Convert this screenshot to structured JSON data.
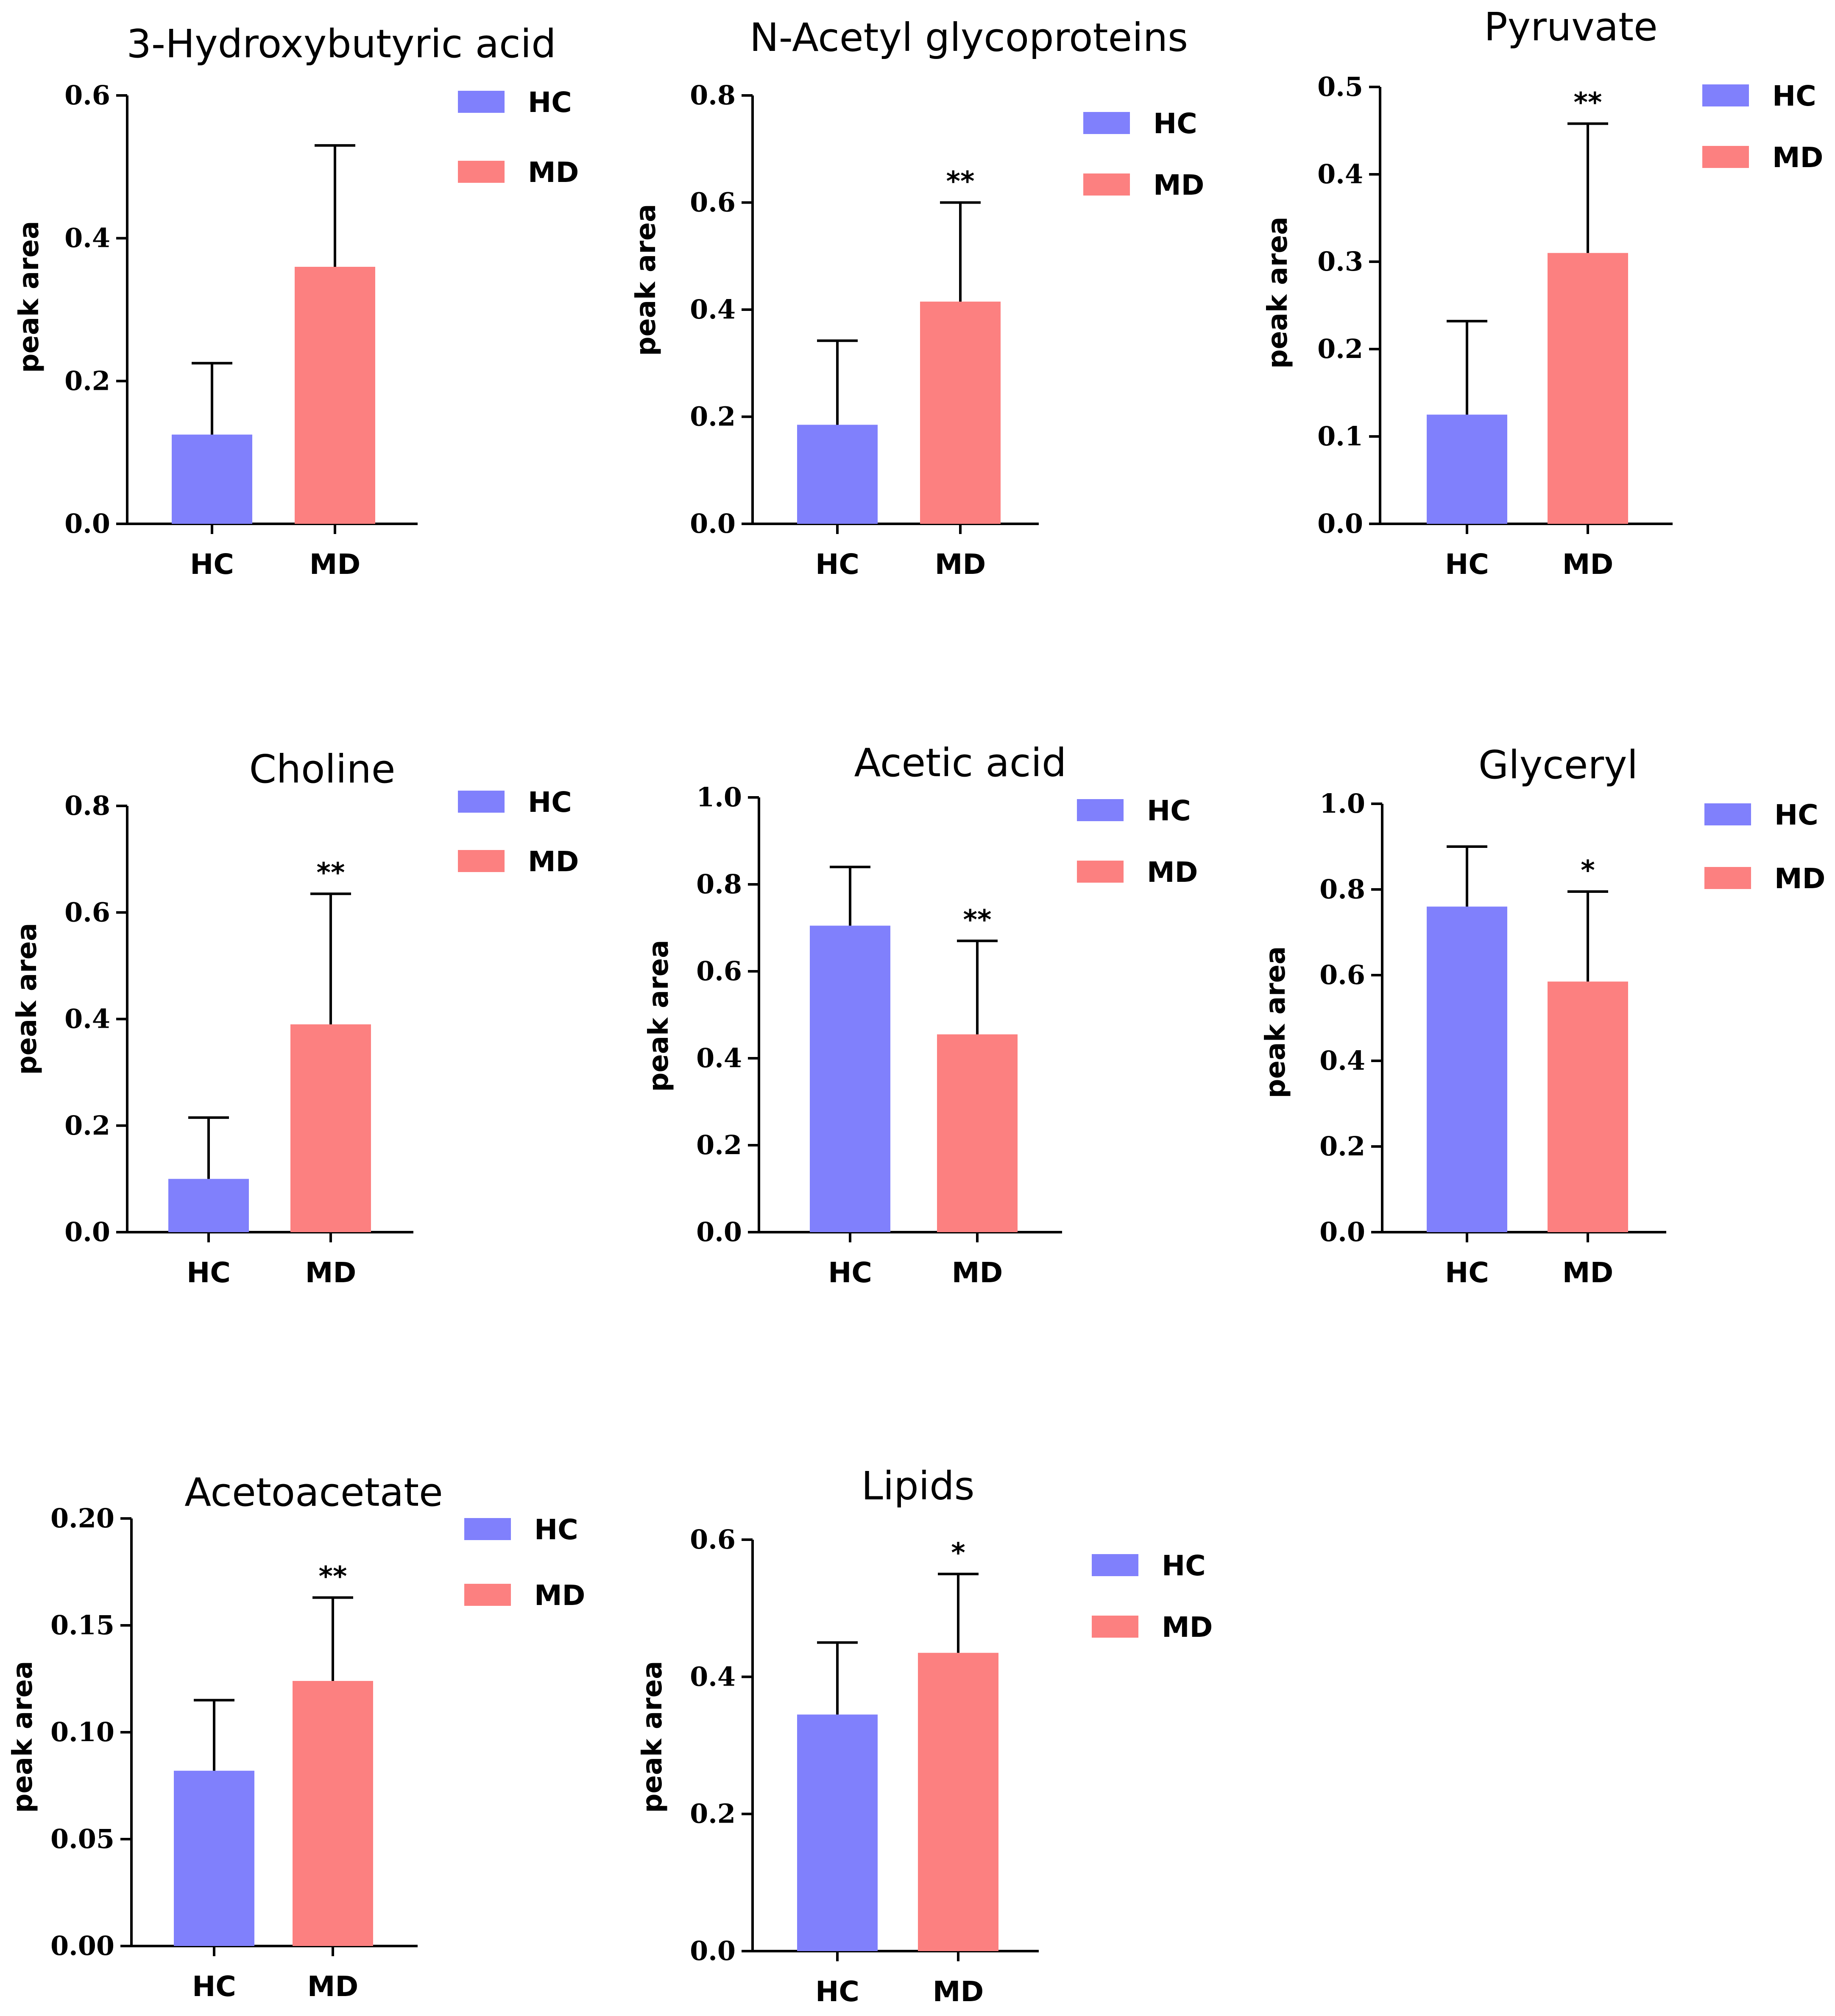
{
  "colors": {
    "HC": "#8080fc",
    "MD": "#fc8080"
  },
  "chart_data": [
    {
      "type": "bar",
      "title": "3-Hydroxybutyric acid",
      "ylabel": "peak area",
      "xlabel": "",
      "categories": [
        "HC",
        "MD"
      ],
      "values": [
        0.125,
        0.36
      ],
      "errors": [
        0.1,
        0.17
      ],
      "significance": "",
      "ylim": [
        0,
        0.6
      ],
      "yticks": [
        "0.0",
        "0.2",
        "0.4",
        "0.6"
      ],
      "tick_values": [
        0,
        0.2,
        0.4,
        0.6
      ],
      "legend": [
        "HC",
        "MD"
      ],
      "legend_position": "top-right"
    },
    {
      "type": "bar",
      "title": "N-Acetyl glycoproteins",
      "ylabel": "peak area",
      "xlabel": "",
      "categories": [
        "HC",
        "MD"
      ],
      "values": [
        0.185,
        0.415
      ],
      "errors": [
        0.157,
        0.185
      ],
      "significance": "**",
      "ylim": [
        0,
        0.8
      ],
      "yticks": [
        "0.0",
        "0.2",
        "0.4",
        "0.6",
        "0.8"
      ],
      "tick_values": [
        0,
        0.2,
        0.4,
        0.6,
        0.8
      ],
      "legend": [
        "HC",
        "MD"
      ],
      "legend_position": "top-right"
    },
    {
      "type": "bar",
      "title": "Pyruvate",
      "ylabel": "peak area",
      "xlabel": "",
      "categories": [
        "HC",
        "MD"
      ],
      "values": [
        0.125,
        0.31
      ],
      "errors": [
        0.107,
        0.148
      ],
      "significance": "**",
      "ylim": [
        0,
        0.5
      ],
      "yticks": [
        "0.0",
        "0.1",
        "0.2",
        "0.3",
        "0.4",
        "0.5"
      ],
      "tick_values": [
        0,
        0.1,
        0.2,
        0.3,
        0.4,
        0.5
      ],
      "legend": [
        "HC",
        "MD"
      ],
      "legend_position": "top-right"
    },
    {
      "type": "bar",
      "title": "Choline",
      "ylabel": "peak area",
      "xlabel": "",
      "categories": [
        "HC",
        "MD"
      ],
      "values": [
        0.1,
        0.39
      ],
      "errors": [
        0.115,
        0.245
      ],
      "significance": "**",
      "ylim": [
        0,
        0.8
      ],
      "yticks": [
        "0.0",
        "0.2",
        "0.4",
        "0.6",
        "0.8"
      ],
      "tick_values": [
        0,
        0.2,
        0.4,
        0.6,
        0.8
      ],
      "legend": [
        "HC",
        "MD"
      ],
      "legend_position": "top-right"
    },
    {
      "type": "bar",
      "title": "Acetic acid",
      "ylabel": "peak area",
      "xlabel": "",
      "categories": [
        "HC",
        "MD"
      ],
      "values": [
        0.705,
        0.455
      ],
      "errors": [
        0.135,
        0.215
      ],
      "significance": "**",
      "ylim": [
        0,
        1.0
      ],
      "yticks": [
        "0.0",
        "0.2",
        "0.4",
        "0.6",
        "0.8",
        "1.0"
      ],
      "tick_values": [
        0,
        0.2,
        0.4,
        0.6,
        0.8,
        1.0
      ],
      "legend": [
        "HC",
        "MD"
      ],
      "legend_position": "top-right"
    },
    {
      "type": "bar",
      "title": "Glyceryl",
      "ylabel": "peak area",
      "xlabel": "",
      "categories": [
        "HC",
        "MD"
      ],
      "values": [
        0.76,
        0.585
      ],
      "errors": [
        0.14,
        0.21
      ],
      "significance": "*",
      "ylim": [
        0,
        1.0
      ],
      "yticks": [
        "0.0",
        "0.2",
        "0.4",
        "0.6",
        "0.8",
        "1.0"
      ],
      "tick_values": [
        0,
        0.2,
        0.4,
        0.6,
        0.8,
        1.0
      ],
      "legend": [
        "HC",
        "MD"
      ],
      "legend_position": "top-right"
    },
    {
      "type": "bar",
      "title": "Acetoacetate",
      "ylabel": "peak area",
      "xlabel": "",
      "categories": [
        "HC",
        "MD"
      ],
      "values": [
        0.082,
        0.124
      ],
      "errors": [
        0.033,
        0.039
      ],
      "significance": "**",
      "ylim": [
        0,
        0.2
      ],
      "yticks": [
        "0.00",
        "0.05",
        "0.10",
        "0.15",
        "0.20"
      ],
      "tick_values": [
        0,
        0.05,
        0.1,
        0.15,
        0.2
      ],
      "legend": [
        "HC",
        "MD"
      ],
      "legend_position": "top-right"
    },
    {
      "type": "bar",
      "title": "Lipids",
      "ylabel": "peak area",
      "xlabel": "",
      "categories": [
        "HC",
        "MD"
      ],
      "values": [
        0.345,
        0.435
      ],
      "errors": [
        0.105,
        0.115
      ],
      "significance": "*",
      "ylim": [
        0,
        0.6
      ],
      "yticks": [
        "0.0",
        "0.2",
        "0.4",
        "0.6"
      ],
      "tick_values": [
        0,
        0.2,
        0.4,
        0.6
      ],
      "legend": [
        "HC",
        "MD"
      ],
      "legend_position": "top-right"
    }
  ]
}
